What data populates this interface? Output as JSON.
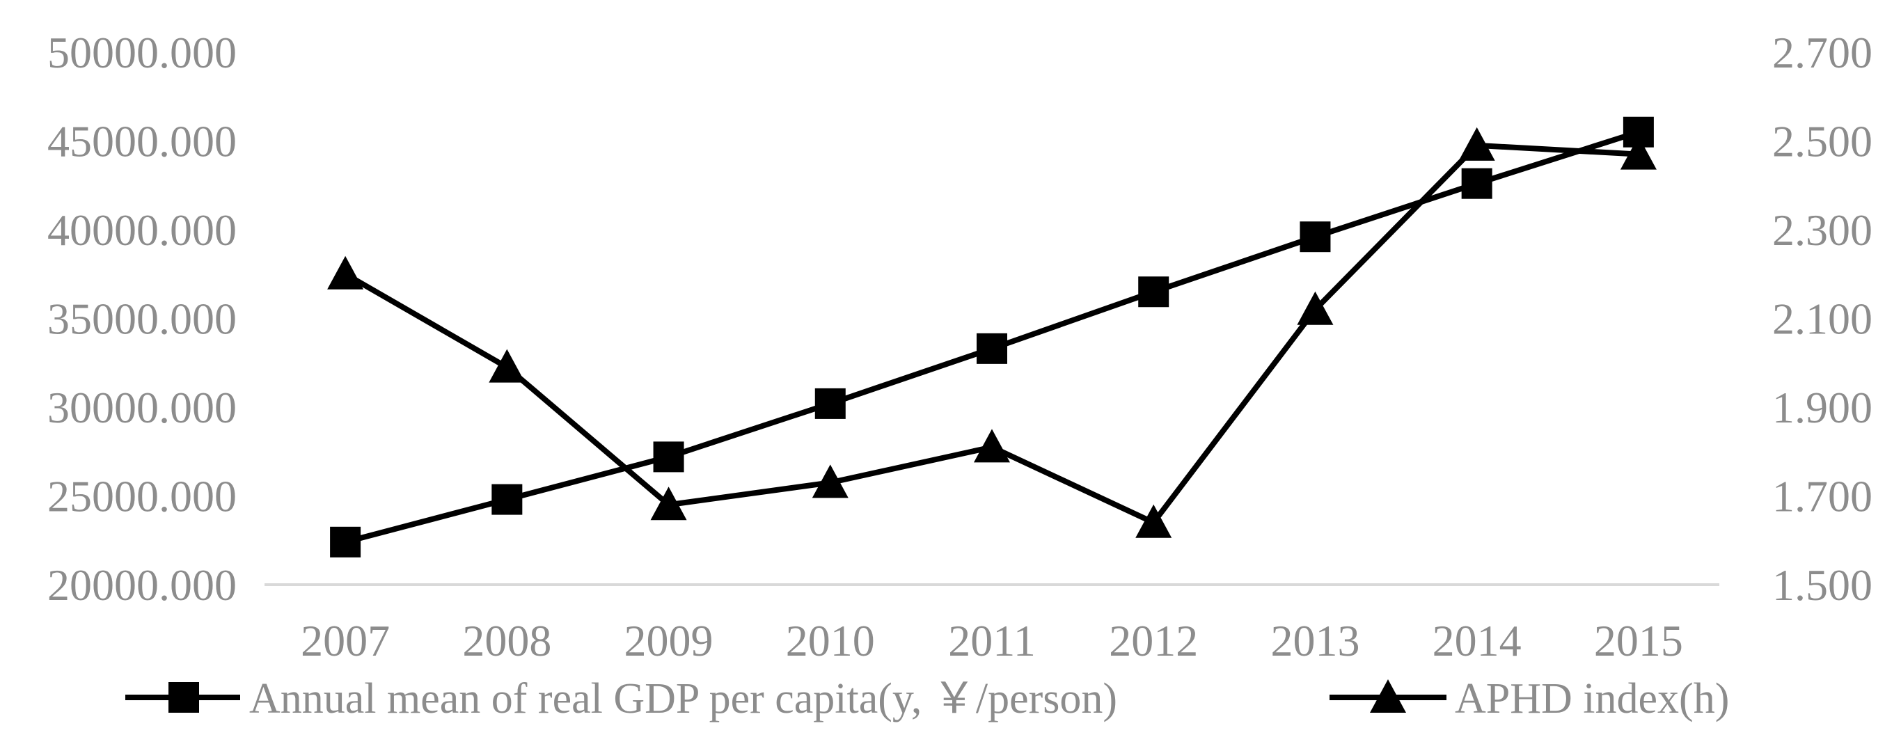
{
  "chart_data": {
    "type": "line",
    "categories": [
      "2007",
      "2008",
      "2009",
      "2010",
      "2011",
      "2012",
      "2013",
      "2014",
      "2015"
    ],
    "y_left": {
      "ticks": [
        "20000.000",
        "25000.000",
        "30000.000",
        "35000.000",
        "40000.000",
        "45000.000",
        "50000.000"
      ],
      "ylim": [
        20000,
        50000
      ]
    },
    "y_right": {
      "ticks": [
        "1.500",
        "1.700",
        "1.900",
        "2.100",
        "2.300",
        "2.500",
        "2.700"
      ],
      "ylim": [
        1.5,
        2.7
      ]
    },
    "series": [
      {
        "name": "Annual mean of real GDP per capita(y, ￥/person)",
        "axis": "left",
        "marker": "square",
        "values": [
          22400,
          24800,
          27200,
          30200,
          33300,
          36500,
          39600,
          42600,
          45500
        ]
      },
      {
        "name": "APHD index(h)",
        "axis": "right",
        "marker": "triangle",
        "values": [
          2.2,
          1.99,
          1.68,
          1.73,
          1.81,
          1.64,
          2.12,
          2.49,
          2.47
        ]
      }
    ],
    "legend_position": "bottom",
    "grid": false,
    "colors": {
      "line": "#000000",
      "axis": "#d9d9d9",
      "text": "#8c8c8c"
    }
  }
}
